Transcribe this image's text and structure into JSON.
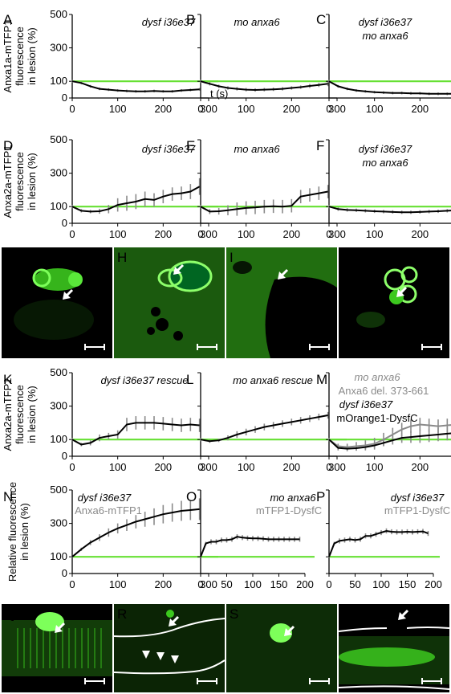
{
  "chart_data": [
    {
      "panel": "A",
      "type": "line",
      "annotation": [
        "dysf i36e37"
      ],
      "ylabel": [
        "Anxa1a-mTFP1",
        "fluorescence",
        "in lesion (%)"
      ],
      "xlabel": "",
      "xtick_unit": "t (s)",
      "xlim": [
        0,
        300
      ],
      "ylim": [
        0,
        500
      ],
      "xticks": [
        0,
        100,
        200,
        300
      ],
      "yticks": [
        0,
        100,
        300,
        500
      ],
      "baseline": 100,
      "series": [
        {
          "name": "",
          "x": [
            0,
            20,
            40,
            60,
            80,
            100,
            120,
            140,
            160,
            180,
            200,
            220,
            240,
            260,
            280
          ],
          "y": [
            100,
            90,
            70,
            55,
            50,
            45,
            42,
            40,
            40,
            42,
            40,
            40,
            45,
            48,
            52
          ],
          "err": [
            8,
            8,
            8,
            8,
            8,
            8,
            8,
            8,
            8,
            8,
            8,
            8,
            8,
            8,
            8
          ]
        }
      ]
    },
    {
      "panel": "B",
      "type": "line",
      "annotation": [
        "mo anxa6"
      ],
      "xlim": [
        0,
        300
      ],
      "ylim": [
        0,
        500
      ],
      "xticks": [
        0,
        100,
        200,
        300
      ],
      "baseline": 100,
      "series": [
        {
          "name": "",
          "x": [
            0,
            20,
            40,
            60,
            80,
            100,
            120,
            140,
            160,
            180,
            200,
            220,
            240,
            260,
            280
          ],
          "y": [
            100,
            85,
            70,
            60,
            55,
            50,
            48,
            50,
            52,
            55,
            60,
            65,
            72,
            78,
            85
          ],
          "err": [
            10,
            10,
            10,
            10,
            10,
            10,
            10,
            10,
            10,
            10,
            10,
            10,
            12,
            12,
            14
          ]
        }
      ]
    },
    {
      "panel": "C",
      "type": "line",
      "annotation": [
        "dysf i36e37",
        "mo anxa6"
      ],
      "xlim": [
        0,
        300
      ],
      "ylim": [
        0,
        500
      ],
      "xticks": [
        0,
        100,
        200,
        300
      ],
      "xtick_unit": "t (s)",
      "baseline": 100,
      "series": [
        {
          "name": "",
          "x": [
            0,
            20,
            40,
            60,
            80,
            100,
            120,
            140,
            160,
            180,
            200,
            220,
            240,
            260,
            280
          ],
          "y": [
            100,
            70,
            55,
            45,
            40,
            35,
            32,
            30,
            30,
            28,
            28,
            25,
            25,
            25,
            25
          ],
          "err": [
            8,
            8,
            8,
            8,
            8,
            8,
            8,
            8,
            8,
            8,
            8,
            8,
            8,
            8,
            8
          ]
        }
      ]
    },
    {
      "panel": "D",
      "type": "line",
      "annotation": [
        "dysf i36e37"
      ],
      "ylabel": [
        "Anxa2a-mTFP1",
        "fluorescence",
        "in lesion (%)"
      ],
      "xlim": [
        0,
        300
      ],
      "ylim": [
        0,
        500
      ],
      "xticks": [
        0,
        100,
        200,
        300
      ],
      "yticks": [
        0,
        100,
        300,
        500
      ],
      "baseline": 100,
      "series": [
        {
          "name": "",
          "x": [
            0,
            20,
            40,
            60,
            80,
            100,
            120,
            140,
            160,
            180,
            200,
            220,
            240,
            260,
            280
          ],
          "y": [
            100,
            75,
            70,
            72,
            85,
            110,
            120,
            130,
            145,
            140,
            160,
            175,
            180,
            190,
            220
          ],
          "err": [
            10,
            10,
            10,
            15,
            25,
            40,
            45,
            45,
            45,
            40,
            40,
            40,
            40,
            45,
            50
          ]
        }
      ]
    },
    {
      "panel": "E",
      "type": "line",
      "annotation": [
        "mo anxa6"
      ],
      "xlim": [
        0,
        300
      ],
      "ylim": [
        0,
        500
      ],
      "xticks": [
        0,
        100,
        200,
        300
      ],
      "baseline": 100,
      "series": [
        {
          "name": "",
          "x": [
            0,
            20,
            40,
            60,
            80,
            100,
            120,
            140,
            160,
            180,
            200,
            220,
            240,
            260,
            280
          ],
          "y": [
            100,
            70,
            72,
            78,
            85,
            92,
            95,
            100,
            102,
            100,
            105,
            160,
            170,
            180,
            190
          ],
          "err": [
            10,
            15,
            20,
            30,
            40,
            40,
            40,
            40,
            40,
            40,
            40,
            40,
            40,
            40,
            40
          ]
        }
      ]
    },
    {
      "panel": "F",
      "type": "line",
      "annotation": [
        "dysf i36e37",
        "mo anxa6"
      ],
      "xlim": [
        0,
        300
      ],
      "ylim": [
        0,
        500
      ],
      "xticks": [
        0,
        100,
        200,
        300
      ],
      "xtick_unit": "t (s)",
      "baseline": 100,
      "series": [
        {
          "name": "",
          "x": [
            0,
            20,
            40,
            60,
            80,
            100,
            120,
            140,
            160,
            180,
            200,
            220,
            240,
            260,
            280
          ],
          "y": [
            100,
            85,
            80,
            78,
            75,
            72,
            70,
            68,
            66,
            66,
            68,
            70,
            72,
            75,
            78
          ],
          "err": [
            10,
            10,
            10,
            10,
            10,
            10,
            10,
            10,
            10,
            10,
            10,
            10,
            10,
            10,
            10
          ]
        }
      ]
    },
    {
      "panel": "K",
      "type": "line",
      "annotation": [
        "dysf i36e37 rescue"
      ],
      "ylabel": [
        "Anxa2a-mTFP1",
        "fluorescence",
        "in lesion (%)"
      ],
      "xlim": [
        0,
        300
      ],
      "ylim": [
        0,
        500
      ],
      "xticks": [
        0,
        100,
        200,
        300
      ],
      "yticks": [
        0,
        100,
        300,
        500
      ],
      "baseline": 100,
      "series": [
        {
          "name": "",
          "x": [
            0,
            20,
            40,
            60,
            80,
            100,
            120,
            140,
            160,
            180,
            200,
            220,
            240,
            260,
            280
          ],
          "y": [
            100,
            70,
            80,
            110,
            120,
            130,
            190,
            200,
            200,
            200,
            195,
            190,
            185,
            190,
            185
          ],
          "err": [
            10,
            10,
            15,
            20,
            20,
            25,
            40,
            40,
            40,
            40,
            40,
            40,
            40,
            40,
            40
          ]
        }
      ]
    },
    {
      "panel": "L",
      "type": "line",
      "annotation": [
        "mo anxa6 rescue"
      ],
      "xlim": [
        0,
        300
      ],
      "ylim": [
        0,
        500
      ],
      "xticks": [
        0,
        100,
        200,
        300
      ],
      "baseline": 100,
      "series": [
        {
          "name": "",
          "x": [
            0,
            20,
            40,
            60,
            80,
            100,
            120,
            140,
            160,
            180,
            200,
            220,
            240,
            260,
            280
          ],
          "y": [
            100,
            90,
            95,
            110,
            130,
            145,
            160,
            175,
            185,
            195,
            205,
            215,
            225,
            235,
            245
          ],
          "err": [
            10,
            10,
            10,
            15,
            20,
            20,
            20,
            20,
            20,
            20,
            20,
            20,
            20,
            20,
            20
          ]
        }
      ]
    },
    {
      "panel": "M",
      "type": "line",
      "annotation": [
        "mo anxa6",
        "Anxa6 del. 373-661",
        "dysf i36e37",
        "mOrange1-DysfC"
      ],
      "xlim": [
        0,
        300
      ],
      "ylim": [
        0,
        500
      ],
      "xticks": [
        0,
        100,
        200,
        300
      ],
      "xtick_unit": "t (s)",
      "baseline": 100,
      "series": [
        {
          "name": "Anxa6 del. 373-661",
          "x": [
            0,
            20,
            40,
            60,
            80,
            100,
            120,
            140,
            160,
            180,
            200,
            220,
            240,
            260,
            280
          ],
          "y": [
            100,
            60,
            55,
            60,
            65,
            75,
            100,
            130,
            160,
            180,
            190,
            185,
            180,
            185,
            190
          ],
          "err": [
            10,
            15,
            20,
            25,
            30,
            35,
            40,
            40,
            40,
            40,
            40,
            40,
            40,
            40,
            40
          ]
        },
        {
          "name": "mOrange1-DysfC",
          "x": [
            0,
            20,
            40,
            60,
            80,
            100,
            120,
            140,
            160,
            180,
            200,
            220,
            240,
            260,
            280
          ],
          "y": [
            100,
            50,
            45,
            48,
            55,
            65,
            80,
            95,
            110,
            115,
            120,
            125,
            130,
            135,
            140
          ],
          "err": [
            10,
            15,
            15,
            15,
            15,
            15,
            20,
            25,
            30,
            35,
            40,
            40,
            40,
            40,
            40
          ]
        }
      ]
    },
    {
      "panel": "N",
      "type": "line",
      "annotation": [
        "dysf i36e37",
        "Anxa6-mTFP1"
      ],
      "ylabel": [
        "Relative fluorescence",
        "in lesion (%)"
      ],
      "xlim": [
        0,
        300
      ],
      "ylim": [
        0,
        500
      ],
      "xticks": [
        0,
        100,
        200,
        300
      ],
      "yticks": [
        0,
        100,
        300,
        500
      ],
      "baseline": 100,
      "series": [
        {
          "name": "Anxa6-mTFP1",
          "x": [
            0,
            20,
            40,
            60,
            80,
            100,
            120,
            140,
            160,
            180,
            200,
            220,
            240,
            260,
            280
          ],
          "y": [
            100,
            145,
            185,
            215,
            245,
            270,
            290,
            310,
            325,
            340,
            355,
            365,
            375,
            380,
            385
          ],
          "err": [
            5,
            10,
            15,
            20,
            25,
            30,
            35,
            40,
            45,
            50,
            55,
            55,
            60,
            60,
            65
          ]
        }
      ]
    },
    {
      "panel": "O",
      "type": "line",
      "annotation": [
        "mo anxa6",
        "mTFP1-DysfC"
      ],
      "xlim": [
        0,
        200
      ],
      "ylim": [
        0,
        500
      ],
      "xticks": [
        0,
        50,
        100,
        150,
        200
      ],
      "baseline": 100,
      "series": [
        {
          "name": "mTFP1-DysfC",
          "x": [
            0,
            10,
            20,
            30,
            40,
            50,
            60,
            70,
            80,
            90,
            100,
            110,
            120,
            130,
            140,
            150,
            160,
            170,
            180,
            190
          ],
          "y": [
            100,
            180,
            190,
            190,
            200,
            200,
            205,
            220,
            215,
            212,
            210,
            210,
            208,
            205,
            205,
            205,
            205,
            205,
            205,
            205
          ],
          "err": [
            5,
            10,
            15,
            15,
            15,
            15,
            15,
            15,
            15,
            15,
            15,
            15,
            15,
            15,
            15,
            15,
            15,
            15,
            15,
            15
          ]
        }
      ]
    },
    {
      "panel": "P",
      "type": "line",
      "annotation": [
        "dysf i36e37",
        "mTFP1-DysfC"
      ],
      "xlim": [
        0,
        200
      ],
      "ylim": [
        0,
        500
      ],
      "xticks": [
        0,
        50,
        100,
        150,
        200
      ],
      "baseline": 100,
      "series": [
        {
          "name": "mTFP1-DysfC",
          "x": [
            0,
            10,
            20,
            30,
            40,
            50,
            60,
            70,
            80,
            90,
            100,
            110,
            120,
            130,
            140,
            150,
            160,
            170,
            180,
            190
          ],
          "y": [
            100,
            180,
            195,
            200,
            205,
            200,
            205,
            225,
            225,
            235,
            245,
            255,
            250,
            248,
            248,
            250,
            248,
            250,
            252,
            240
          ],
          "err": [
            5,
            10,
            15,
            15,
            15,
            15,
            15,
            15,
            15,
            15,
            15,
            15,
            15,
            15,
            15,
            15,
            15,
            15,
            15,
            15
          ]
        }
      ]
    }
  ],
  "micrographs": {
    "row1": [
      "G",
      "H",
      "I",
      "J"
    ],
    "row2": [
      "Q",
      "R",
      "S",
      "T"
    ]
  },
  "colors": {
    "baseline": "#66e033",
    "line": "#000000",
    "error": "#8a8a8a",
    "grey_series": "#8a8a8a",
    "micro_green": "#3cc81e"
  }
}
